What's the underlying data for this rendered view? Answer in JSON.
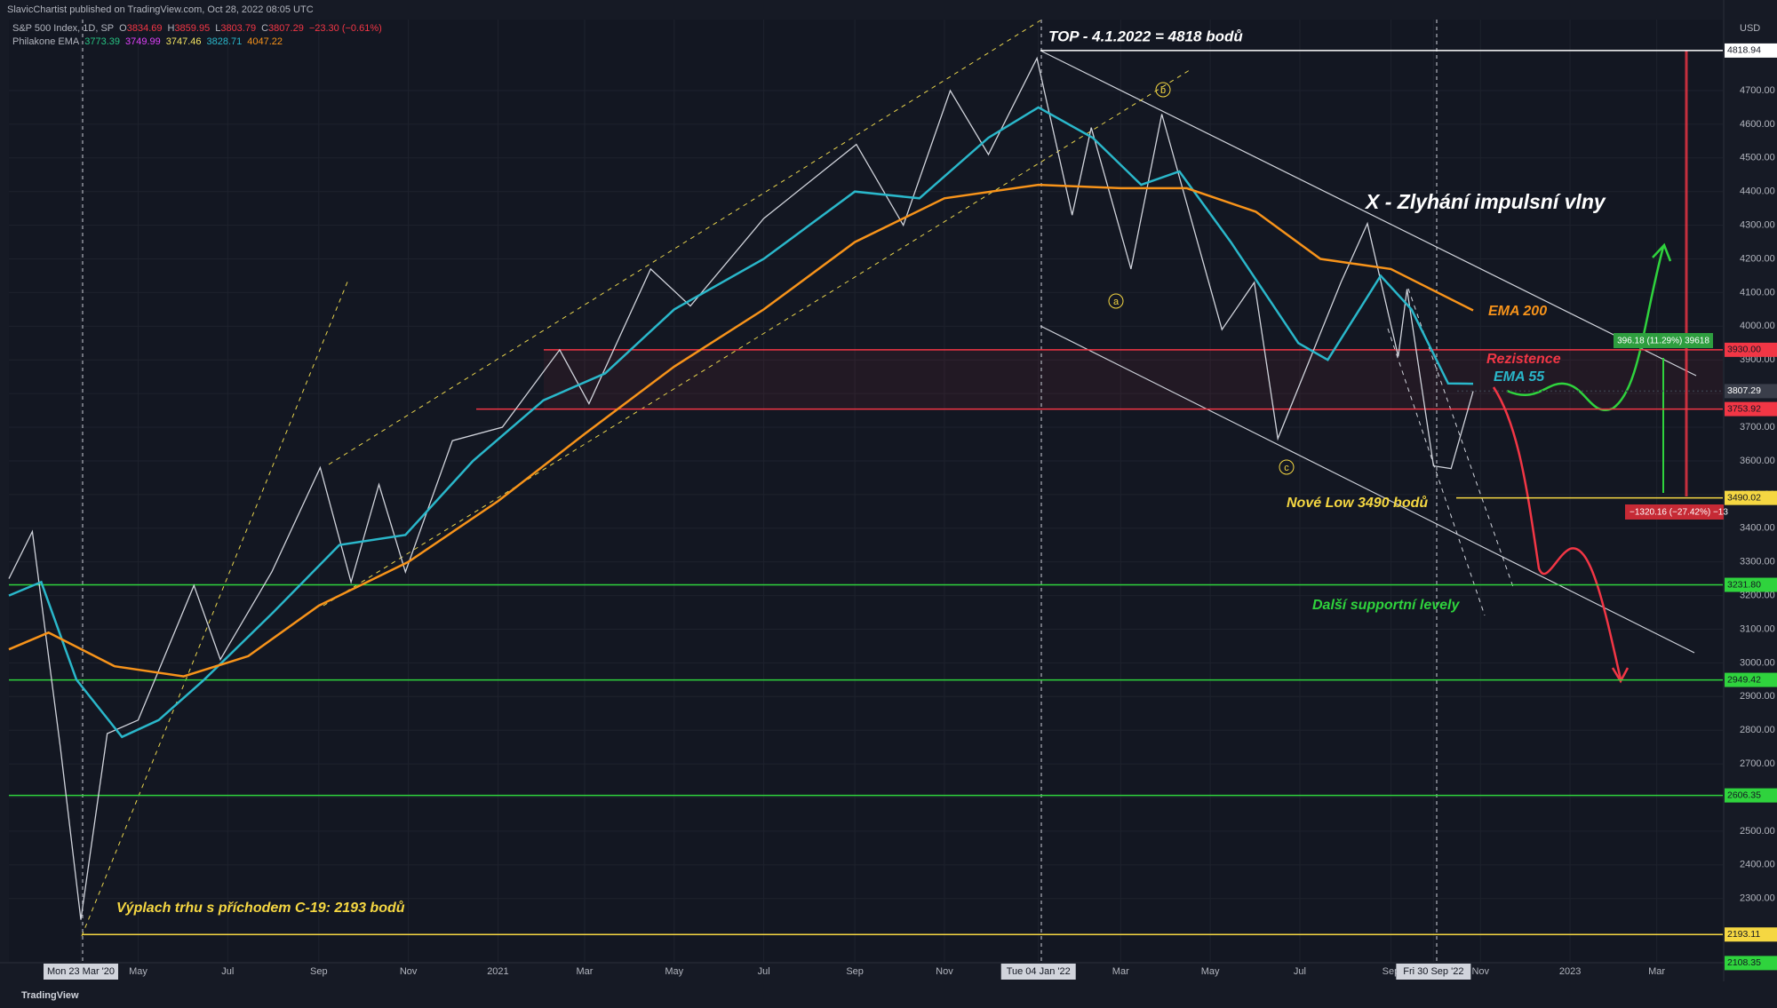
{
  "header": {
    "publisher": "SlavicChartist published on TradingView.com, Oct 28, 2022 08:05 UTC",
    "symbol": "S&P 500 Index, 1D, SP",
    "ohlc": [
      {
        "key": "O",
        "value": 3834.69
      },
      {
        "key": "H",
        "value": 3859.95
      },
      {
        "key": "L",
        "value": 3803.79
      },
      {
        "key": "C",
        "value": 3807.29
      }
    ],
    "change": "−23.30 (−0.61%)",
    "indicator": "Philakone EMA",
    "ema_values": [
      {
        "value": 3773.39,
        "color": "#26c281"
      },
      {
        "value": 3749.99,
        "color": "#e040fb"
      },
      {
        "value": 3747.46,
        "color": "#f5e663"
      },
      {
        "value": 3828.71,
        "color": "#2ab7ca"
      },
      {
        "value": 4047.22,
        "color": "#f7931a"
      }
    ]
  },
  "chart_data": {
    "type": "line",
    "currency": "USD",
    "xlim": [
      "2020-02-03",
      "2023-04-15"
    ],
    "ylim": [
      2112,
      4911
    ],
    "yticks": [
      {
        "value": 2300,
        "label": "2300.00"
      },
      {
        "value": 2400,
        "label": "2400.00"
      },
      {
        "value": 2500,
        "label": "2500.00"
      },
      {
        "value": 2600,
        "label": "2600.00"
      },
      {
        "value": 2700,
        "label": "2700.00"
      },
      {
        "value": 2800,
        "label": "2800.00"
      },
      {
        "value": 2900,
        "label": "2900.00"
      },
      {
        "value": 3000,
        "label": "3000.00"
      },
      {
        "value": 3100,
        "label": "3100.00"
      },
      {
        "value": 3200,
        "label": "3200.00"
      },
      {
        "value": 3300,
        "label": "3300.00"
      },
      {
        "value": 3400,
        "label": "3400.00"
      },
      {
        "value": 3500,
        "label": "3500.00"
      },
      {
        "value": 3600,
        "label": "3600.00"
      },
      {
        "value": 3700,
        "label": "3700.00"
      },
      {
        "value": 3800,
        "label": "3800.00"
      },
      {
        "value": 3900,
        "label": "3900.00"
      },
      {
        "value": 4000,
        "label": "4000.00"
      },
      {
        "value": 4100,
        "label": "4100.00"
      },
      {
        "value": 4200,
        "label": "4200.00"
      },
      {
        "value": 4300,
        "label": "4300.00"
      },
      {
        "value": 4400,
        "label": "4400.00"
      },
      {
        "value": 4500,
        "label": "4500.00"
      },
      {
        "value": 4600,
        "label": "4600.00"
      },
      {
        "value": 4700,
        "label": "4700.00"
      }
    ],
    "xticks": [
      {
        "value": "2020-03-23",
        "label": "Mon 23 Mar '20"
      },
      {
        "value": "2020-05-01",
        "label": "May"
      },
      {
        "value": "2020-07-01",
        "label": "Jul"
      },
      {
        "value": "2020-09-01",
        "label": "Sep"
      },
      {
        "value": "2020-11-01",
        "label": "Nov"
      },
      {
        "value": "2021-01-01",
        "label": "2021"
      },
      {
        "value": "2021-03-01",
        "label": "Mar"
      },
      {
        "value": "2021-05-01",
        "label": "May"
      },
      {
        "value": "2021-07-01",
        "label": "Jul"
      },
      {
        "value": "2021-09-01",
        "label": "Sep"
      },
      {
        "value": "2021-11-01",
        "label": "Nov"
      },
      {
        "value": "2022-01-04",
        "label": "Tue 04 Jan '22"
      },
      {
        "value": "2022-03-01",
        "label": "Mar"
      },
      {
        "value": "2022-05-01",
        "label": "May"
      },
      {
        "value": "2022-07-01",
        "label": "Jul"
      },
      {
        "value": "2022-09-01",
        "label": "Sep"
      },
      {
        "value": "2022-09-30",
        "label": "Fri 30 Sep '22"
      },
      {
        "value": "2022-11-01",
        "label": "Nov"
      },
      {
        "value": "2023-01-01",
        "label": "2023"
      },
      {
        "value": "2023-03-01",
        "label": "Mar"
      }
    ],
    "series": [
      {
        "name": "S&P 500 Index",
        "color": "#d1d4dc",
        "x": [
          "2020-02-03",
          "2020-02-19",
          "2020-03-09",
          "2020-03-23",
          "2020-04-10",
          "2020-05-01",
          "2020-06-08",
          "2020-06-26",
          "2020-07-31",
          "2020-09-02",
          "2020-09-23",
          "2020-10-12",
          "2020-10-30",
          "2020-12-01",
          "2021-01-04",
          "2021-02-12",
          "2021-03-04",
          "2021-04-15",
          "2021-05-12",
          "2021-07-01",
          "2021-09-02",
          "2021-10-04",
          "2021-11-05",
          "2021-12-01",
          "2022-01-03",
          "2022-01-27",
          "2022-02-09",
          "2022-03-08",
          "2022-03-29",
          "2022-05-09",
          "2022-05-31",
          "2022-06-16",
          "2022-07-29",
          "2022-08-16",
          "2022-09-06",
          "2022-09-12",
          "2022-09-30",
          "2022-10-12",
          "2022-10-27"
        ],
        "values": [
          3250,
          3390,
          2750,
          2237,
          2790,
          2830,
          3230,
          3010,
          3270,
          3580,
          3240,
          3530,
          3270,
          3660,
          3700,
          3930,
          3770,
          4170,
          4060,
          4320,
          4540,
          4300,
          4700,
          4510,
          4796,
          4330,
          4590,
          4170,
          4630,
          3990,
          4130,
          3666,
          4130,
          4305,
          3910,
          4110,
          3585,
          3577,
          3807
        ]
      },
      {
        "name": "EMA 55",
        "color": "#2ab7ca",
        "x": [
          "2020-02-03",
          "2020-02-25",
          "2020-03-20",
          "2020-04-20",
          "2020-05-15",
          "2020-06-15",
          "2020-08-01",
          "2020-09-15",
          "2020-10-30",
          "2020-12-15",
          "2021-02-01",
          "2021-03-15",
          "2021-05-01",
          "2021-07-01",
          "2021-09-01",
          "2021-10-15",
          "2021-12-01",
          "2022-01-04",
          "2022-02-10",
          "2022-03-15",
          "2022-04-10",
          "2022-05-15",
          "2022-06-30",
          "2022-07-20",
          "2022-08-25",
          "2022-09-15",
          "2022-10-10",
          "2022-10-27"
        ],
        "values": [
          3200,
          3240,
          2950,
          2780,
          2830,
          2950,
          3150,
          3350,
          3380,
          3600,
          3780,
          3860,
          4050,
          4200,
          4400,
          4380,
          4560,
          4650,
          4560,
          4420,
          4460,
          4250,
          3950,
          3900,
          4150,
          4050,
          3830,
          3829
        ]
      },
      {
        "name": "EMA 200",
        "color": "#f7931a",
        "x": [
          "2020-02-03",
          "2020-03-01",
          "2020-04-15",
          "2020-06-01",
          "2020-07-15",
          "2020-09-01",
          "2020-11-01",
          "2021-01-01",
          "2021-03-01",
          "2021-05-01",
          "2021-07-01",
          "2021-09-01",
          "2021-11-01",
          "2022-01-04",
          "2022-03-01",
          "2022-04-15",
          "2022-06-01",
          "2022-07-15",
          "2022-09-01",
          "2022-10-27"
        ],
        "values": [
          3040,
          3090,
          2990,
          2960,
          3020,
          3170,
          3300,
          3480,
          3680,
          3880,
          4050,
          4250,
          4380,
          4420,
          4410,
          4410,
          4340,
          4200,
          4170,
          4047
        ]
      }
    ],
    "levels": [
      {
        "value": 4818.94,
        "color": "#ffffff"
      },
      {
        "value": 3930,
        "label": "3930.00",
        "color": "#f23645"
      },
      {
        "value": 3807.29,
        "color": "#3a3e4a"
      },
      {
        "value": 3753.92,
        "color": "#f23645"
      },
      {
        "value": 3490.02,
        "color": "#f5d742"
      },
      {
        "value": 3231.8,
        "label": "3231.80",
        "color": "#2fd33d"
      },
      {
        "value": 2949.42,
        "color": "#2fd33d"
      },
      {
        "value": 2606.35,
        "color": "#2fd33d"
      },
      {
        "value": 2193.11,
        "color": "#f5d742"
      },
      {
        "value": 2108.35,
        "color": "#2fd33d"
      }
    ],
    "annotations": {
      "top": "TOP - 4.1.2022 = 4818 bodů",
      "failure": "X - Zlyhání impulsní vlny",
      "ema200": "EMA 200",
      "resistance": "Rezistence",
      "ema55": "EMA 55",
      "new_low": "Nové Low 3490 bodů",
      "supports": "Další supportní levely",
      "covid": "Výplach trhu s příchodem C-19: 2193 bodů",
      "wave_a": "a",
      "wave_b": "b",
      "wave_c": "c",
      "measure_up": "396.18 (11.29%) 39618",
      "measure_down": "−1320.16 (−27.42%) −13"
    },
    "footer": "TradingView"
  }
}
